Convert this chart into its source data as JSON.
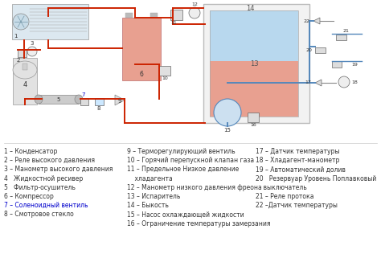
{
  "bg_color": "#ffffff",
  "legend_col1": [
    "1 – Конденсатор",
    "2 – Реле высокого давления",
    "3 – Манометр высокого давления",
    "4   Жидкостной ресивер",
    "5   Фильтр-осушитель",
    "6 – Компрессор",
    "7 – Соленоидный вентиль",
    "8 – Смотровое стекло"
  ],
  "legend_col2": [
    "9 – Терморегулирующий вентиль",
    "10 – Горячий перепускной клапан газа",
    "11 – Предельное Низкое давление",
    "    хладагента",
    "12 – Манометр низкого давления фреона",
    "13 – Испаритель",
    "14 – Быкость",
    "15 – Насос охлаждающей жидкости",
    "16 – Ограничение температуры замерзания"
  ],
  "legend_col3": [
    "17 – Датчик температуры",
    "18 – Хладагент-манометр",
    "19 – Автоматический долив",
    "20   Резервуар Уровень Поплавковый",
    "    выключатель",
    "21 – Реле протока",
    "22 –Датчик температуры"
  ],
  "font_size_legend": 5.5,
  "text_color": "#333333",
  "blue_link_color": "#0000cc",
  "pipe_color_red": "#cc2200",
  "pipe_color_blue": "#5588bb",
  "component_fill_red": "#e8a090",
  "component_fill_blue": "#aaccee",
  "tank_fill_top": "#e8a090",
  "tank_fill_bottom": "#b8d8ee"
}
